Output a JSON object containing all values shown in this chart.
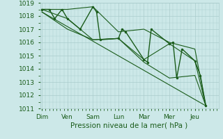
{
  "background_color": "#cce8e8",
  "grid_color": "#aacccc",
  "line_color": "#1a5c1a",
  "xlabel": "Pression niveau de la mer( hPa )",
  "xlabel_fontsize": 7.5,
  "tick_fontsize": 6.5,
  "ylim": [
    1011,
    1019
  ],
  "yticks": [
    1011,
    1012,
    1013,
    1014,
    1015,
    1016,
    1017,
    1018,
    1019
  ],
  "day_labels": [
    "Dim",
    "Ven",
    "Sam",
    "Lun",
    "Mar",
    "Mer",
    "Jeu"
  ],
  "day_positions": [
    0,
    14,
    28,
    42,
    56,
    70,
    84
  ],
  "xlim": [
    -1,
    97
  ],
  "series": [
    {
      "x": [
        0,
        4,
        7,
        11,
        14,
        21,
        28,
        30,
        32,
        42,
        44,
        46,
        56,
        58,
        60,
        70,
        72,
        74,
        77,
        84,
        87,
        90
      ],
      "y": [
        1018.5,
        1018.5,
        1017.8,
        1018.5,
        1017.8,
        1017.0,
        1018.7,
        1018.3,
        1016.2,
        1016.3,
        1017.0,
        1016.8,
        1014.7,
        1014.5,
        1017.0,
        1015.9,
        1016.0,
        1013.3,
        1015.5,
        1014.6,
        1013.5,
        1011.2
      ],
      "lw": 1.0,
      "ms": 2.0,
      "has_markers": true
    },
    {
      "x": [
        0,
        14,
        28,
        42,
        56,
        70,
        84,
        90
      ],
      "y": [
        1018.5,
        1018.5,
        1018.7,
        1016.8,
        1017.0,
        1016.0,
        1015.5,
        1011.2
      ],
      "lw": 0.8,
      "ms": 0,
      "has_markers": false
    },
    {
      "x": [
        0,
        14,
        28,
        42,
        56,
        70,
        84,
        90
      ],
      "y": [
        1018.5,
        1017.8,
        1016.2,
        1016.3,
        1014.7,
        1015.9,
        1014.6,
        1011.2
      ],
      "lw": 0.8,
      "ms": 0,
      "has_markers": false
    },
    {
      "x": [
        0,
        14,
        28,
        42,
        56,
        70,
        84,
        90
      ],
      "y": [
        1018.3,
        1017.0,
        1016.2,
        1016.3,
        1014.5,
        1013.3,
        1013.5,
        1011.2
      ],
      "lw": 0.8,
      "ms": 0,
      "has_markers": false
    },
    {
      "x": [
        0,
        90
      ],
      "y": [
        1018.3,
        1011.2
      ],
      "lw": 0.8,
      "ms": 0,
      "has_markers": false
    }
  ]
}
